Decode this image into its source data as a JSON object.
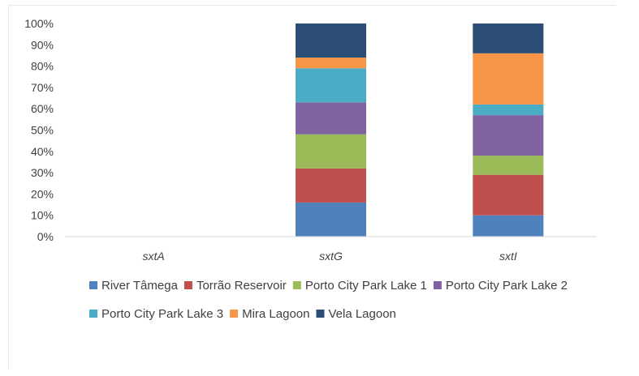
{
  "chart_data": {
    "type": "bar",
    "stacked": true,
    "percent_stacked": true,
    "categories": [
      "sxtA",
      "sxtG",
      "sxtI"
    ],
    "y_tick_labels": [
      "0%",
      "10%",
      "20%",
      "30%",
      "40%",
      "50%",
      "60%",
      "70%",
      "80%",
      "90%",
      "100%"
    ],
    "ylim": [
      0,
      100
    ],
    "grid": false,
    "legend_position": "bottom",
    "series": [
      {
        "name": "River Tâmega",
        "color": "#4f81bd",
        "values": [
          0,
          16,
          10
        ]
      },
      {
        "name": "Torrão Reservoir",
        "color": "#c0504d",
        "values": [
          0,
          16,
          19
        ]
      },
      {
        "name": "Porto City Park Lake 1",
        "color": "#9bbb59",
        "values": [
          0,
          16,
          9
        ]
      },
      {
        "name": "Porto City Park Lake 2",
        "color": "#8064a2",
        "values": [
          0,
          15,
          19
        ]
      },
      {
        "name": "Porto City Park Lake 3",
        "color": "#4bacc6",
        "values": [
          0,
          16,
          5
        ]
      },
      {
        "name": "Mira Lagoon",
        "color": "#f79646",
        "values": [
          0,
          5,
          24
        ]
      },
      {
        "name": "Vela Lagoon",
        "color": "#2c4d75",
        "values": [
          0,
          16,
          14
        ]
      }
    ]
  }
}
